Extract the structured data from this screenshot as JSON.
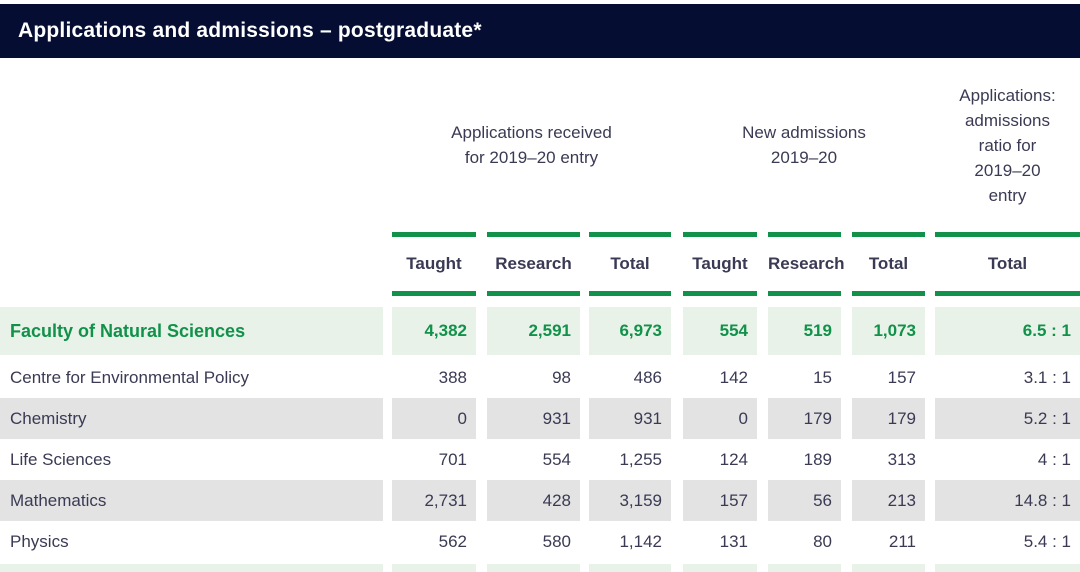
{
  "title_bar": {
    "title": "Applications and admissions – postgraduate*"
  },
  "colors": {
    "navy": "#060d33",
    "green": "#11914a",
    "light_green": "#e9f2e8",
    "grey": "#e3e3e3",
    "ink": "#3a3a54"
  },
  "table": {
    "groups": [
      {
        "label": "Applications received\nfor 2019–20 entry"
      },
      {
        "label": "New admissions\n2019–20"
      },
      {
        "label": "Applications:\nadmissions\nratio for\n2019–20\nentry"
      }
    ],
    "sub_headers": [
      "Taught",
      "Research",
      "Total",
      "Taught",
      "Research",
      "Total",
      "Total"
    ],
    "rows": [
      {
        "label": "Faculty of Natural Sciences",
        "values": [
          "4,382",
          "2,591",
          "6,973",
          "554",
          "519",
          "1,073",
          "6.5 : 1"
        ]
      },
      {
        "label": "Centre for Environmental Policy",
        "values": [
          "388",
          "98",
          "486",
          "142",
          "15",
          "157",
          "3.1 : 1"
        ]
      },
      {
        "label": "Chemistry",
        "values": [
          "0",
          "931",
          "931",
          "0",
          "179",
          "179",
          "5.2 : 1"
        ]
      },
      {
        "label": "Life Sciences",
        "values": [
          "701",
          "554",
          "1,255",
          "124",
          "189",
          "313",
          "4 : 1"
        ]
      },
      {
        "label": "Mathematics",
        "values": [
          "2,731",
          "428",
          "3,159",
          "157",
          "56",
          "213",
          "14.8 : 1"
        ]
      },
      {
        "label": "Physics",
        "values": [
          "562",
          "580",
          "1,142",
          "131",
          "80",
          "211",
          "5.4 : 1"
        ]
      }
    ]
  }
}
